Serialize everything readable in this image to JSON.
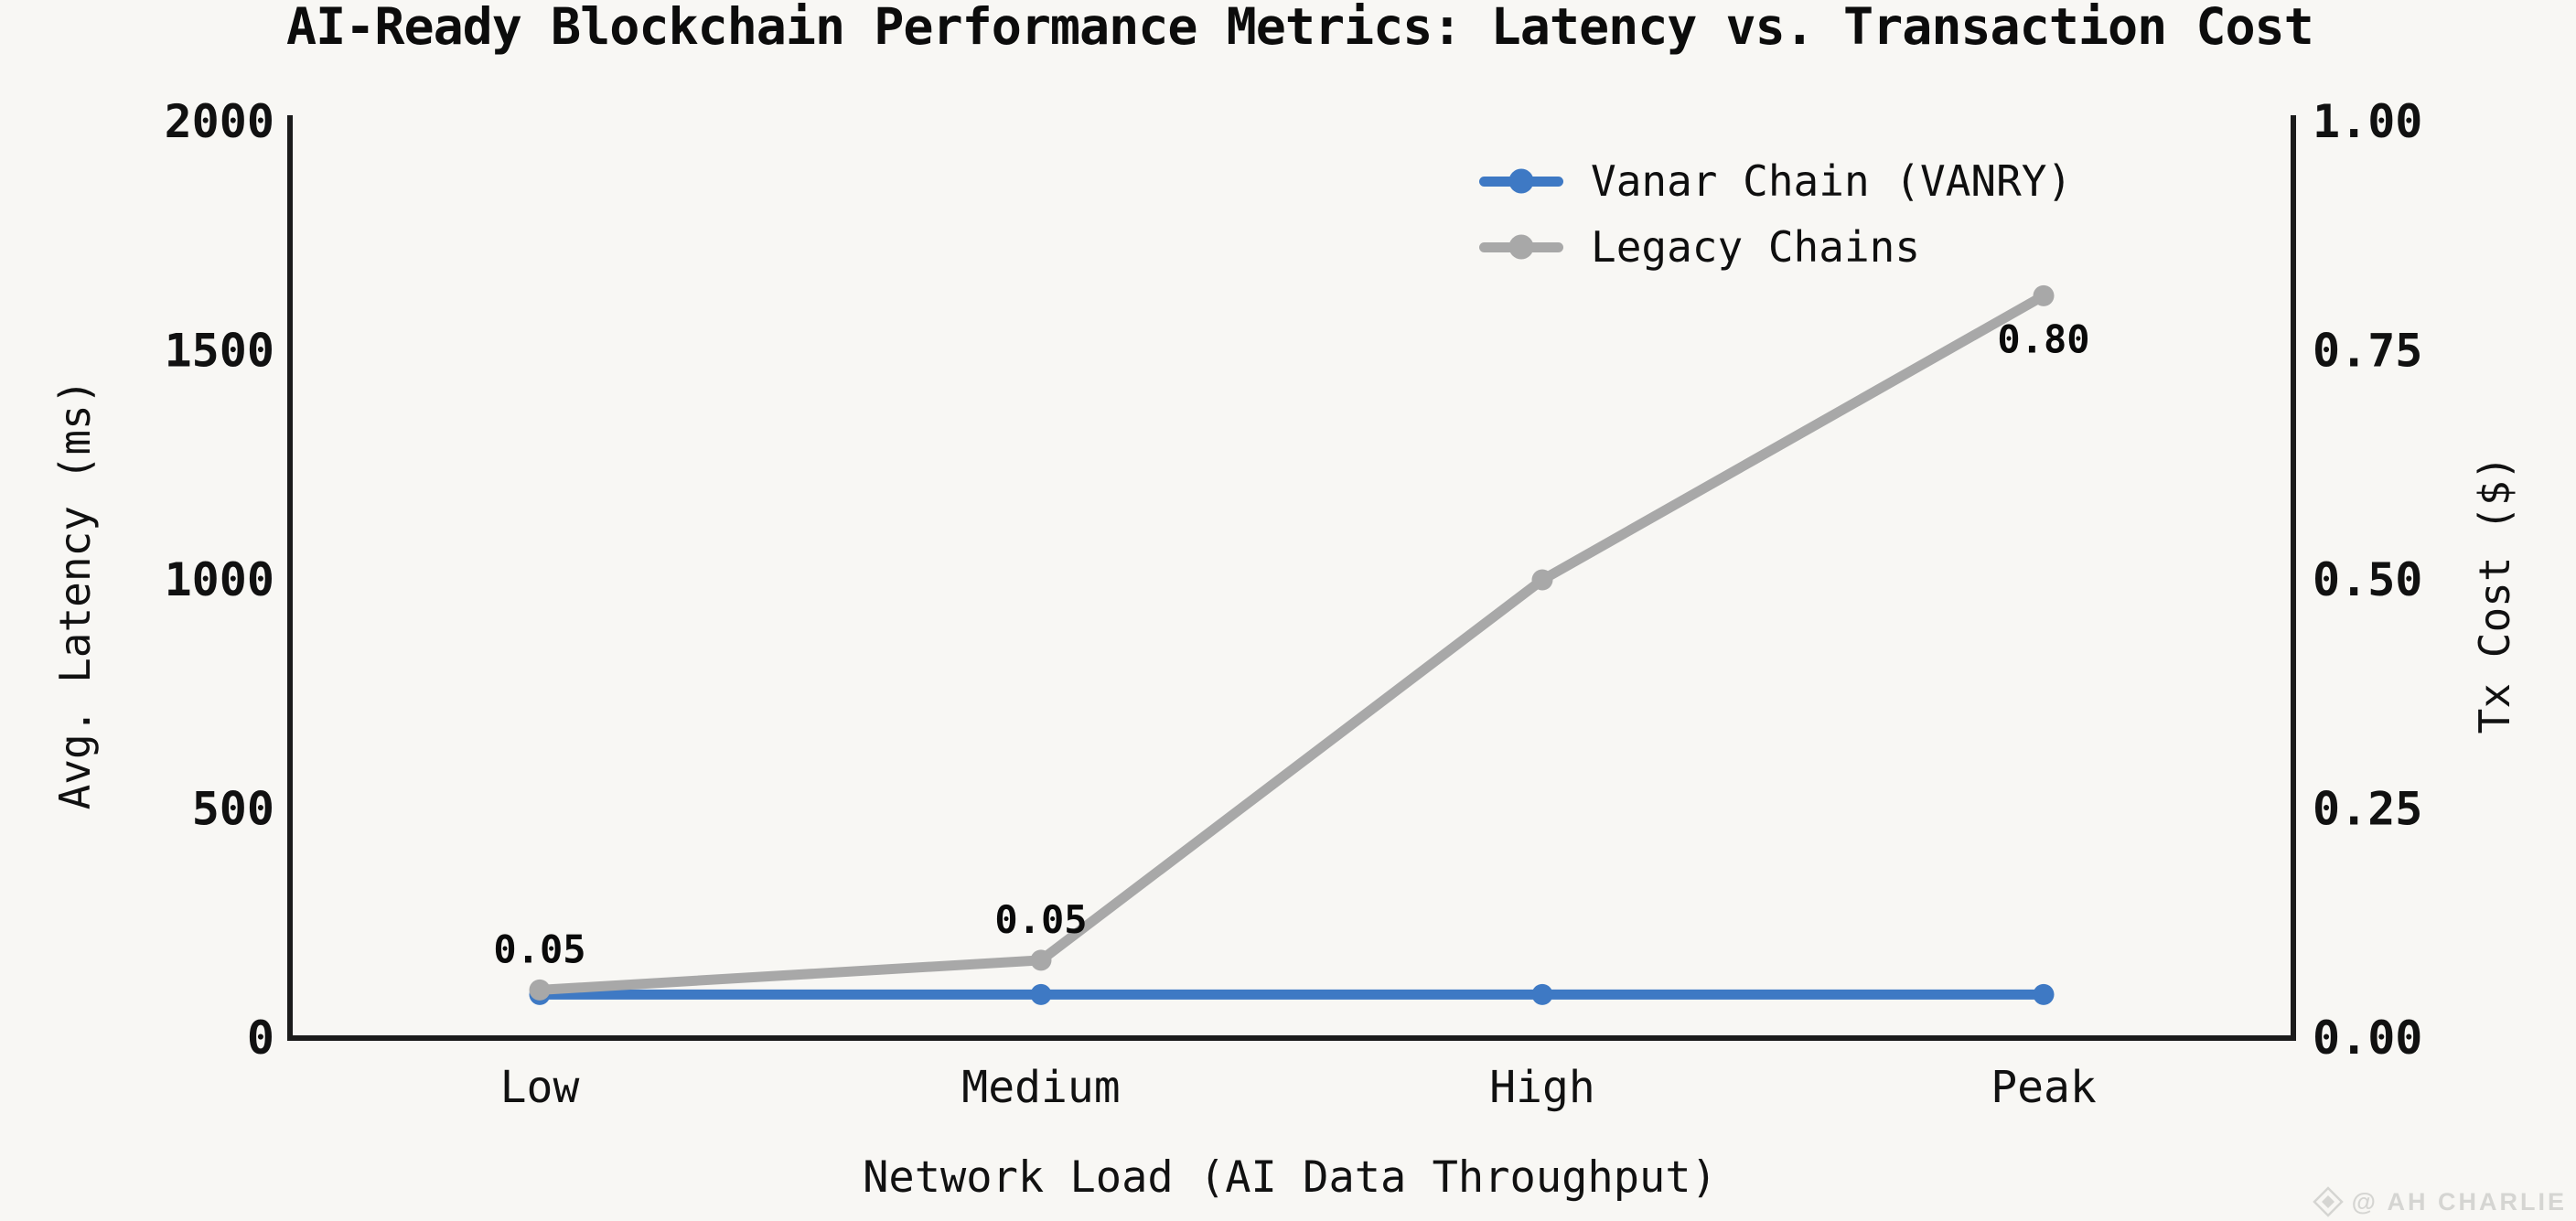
{
  "watermark": {
    "text": "@ AH CHARLIE",
    "icon": "diamond-logo-icon"
  },
  "colors": {
    "background": "#f8f7f4",
    "spine": "#1b1b1b",
    "text": "#111111",
    "vanar_blue": "#3e79c4",
    "legacy_gray": "#a8a8a8",
    "watermark_gray": "#d5d5d2"
  },
  "chart_data": {
    "type": "line",
    "title": "AI-Ready Blockchain Performance Metrics: Latency vs. Transaction Cost",
    "categories": [
      "Low",
      "Medium",
      "High",
      "Peak"
    ],
    "xlabel": "Network Load (AI Data Throughput)",
    "left_axis": {
      "label": "Avg. Latency (ms)",
      "ticks": [
        "0",
        "500",
        "1000",
        "1500",
        "2000"
      ],
      "range": [
        0,
        2000
      ]
    },
    "right_axis": {
      "label": "Tx Cost ($)",
      "ticks": [
        "0.00",
        "0.25",
        "0.50",
        "0.75",
        "1.00"
      ],
      "range": [
        0,
        1
      ]
    },
    "series": [
      {
        "name": "Vanar Chain (VANRY)",
        "color": "#3e79c4",
        "axis": "left",
        "values": [
          95,
          95,
          95,
          95
        ]
      },
      {
        "name": "Legacy Chains",
        "color": "#a8a8a8",
        "axis": "left",
        "values": [
          105,
          170,
          1000,
          1620
        ]
      }
    ],
    "annotations": [
      {
        "text": "0.05",
        "category_index": 0,
        "series_index": 1,
        "placement": "above"
      },
      {
        "text": "0.05",
        "category_index": 1,
        "series_index": 1,
        "placement": "above"
      },
      {
        "text": "0.80",
        "category_index": 3,
        "series_index": 1,
        "placement": "below"
      }
    ],
    "legend": {
      "position": "upper-right-of-center",
      "frame": false
    }
  }
}
